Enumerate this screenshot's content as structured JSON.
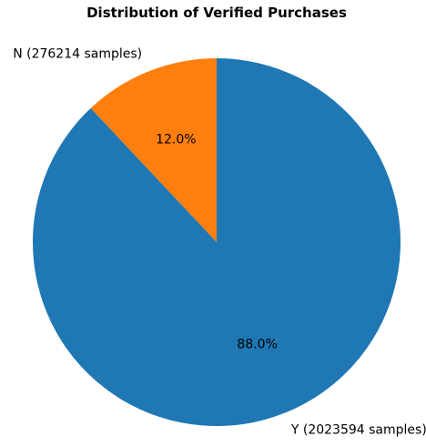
{
  "chart_data": {
    "type": "pie",
    "title": "Distribution of Verified Purchases",
    "slices": [
      {
        "category": "N",
        "label": "N (276214 samples)",
        "value": 276214,
        "percent_label": "12.0%",
        "color": "#ff7f0e"
      },
      {
        "category": "Y",
        "label": "Y (2023594 samples)",
        "value": 2023594,
        "percent_label": "88.0%",
        "color": "#1f77b4"
      }
    ],
    "start_angle_deg": 90,
    "direction": "counterclockwise"
  }
}
